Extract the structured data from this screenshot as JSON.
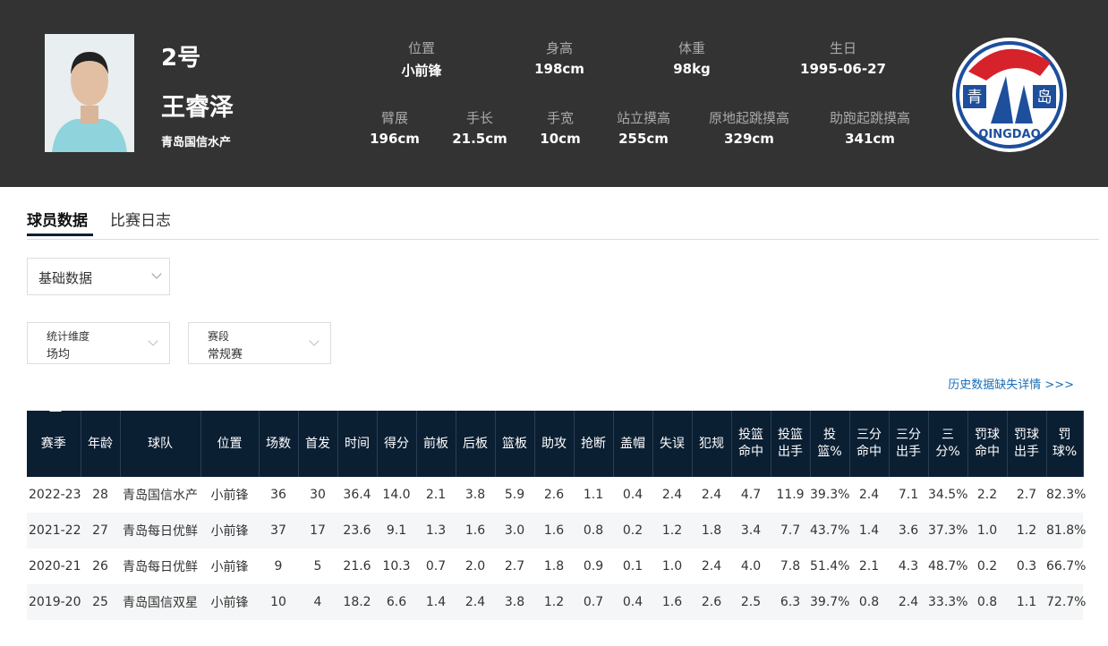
{
  "player": {
    "number": "2号",
    "name": "王睿泽",
    "team": "青岛国信水产",
    "info_row1": [
      {
        "label": "位置",
        "value": "小前锋"
      },
      {
        "label": "身高",
        "value": "198cm"
      },
      {
        "label": "体重",
        "value": "98kg"
      },
      {
        "label": "生日",
        "value": "1995-06-27"
      }
    ],
    "info_row2": [
      {
        "label": "臂展",
        "value": "196cm"
      },
      {
        "label": "手长",
        "value": "21.5cm"
      },
      {
        "label": "手宽",
        "value": "10cm"
      },
      {
        "label": "站立摸高",
        "value": "255cm"
      },
      {
        "label": "原地起跳摸高",
        "value": "329cm"
      },
      {
        "label": "助跑起跳摸高",
        "value": "341cm"
      }
    ],
    "logo": {
      "left": "青",
      "right": "岛",
      "bottom": "QINGDAO"
    }
  },
  "tabs": [
    "球员数据",
    "比赛日志"
  ],
  "data_type": "基础数据",
  "filters": [
    {
      "label": "统计维度",
      "value": "场均"
    },
    {
      "label": "赛段",
      "value": "常规赛"
    }
  ],
  "history_link": "历史数据缺失详情 >>>",
  "table": {
    "headers": [
      "赛季",
      "年龄",
      "球队",
      "位置",
      "场数",
      "首发",
      "时间",
      "得分",
      "前板",
      "后板",
      "篮板",
      "助攻",
      "抢断",
      "盖帽",
      "失误",
      "犯规",
      "投篮命中",
      "投篮出手",
      "投篮%",
      "三分命中",
      "三分出手",
      "三分%",
      "罚球命中",
      "罚球出手",
      "罚球%"
    ],
    "rows": [
      [
        "2022-23",
        "28",
        "青岛国信水产",
        "小前锋",
        "36",
        "30",
        "36.4",
        "14.0",
        "2.1",
        "3.8",
        "5.9",
        "2.6",
        "1.1",
        "0.4",
        "2.4",
        "2.4",
        "4.7",
        "11.9",
        "39.3%",
        "2.4",
        "7.1",
        "34.5%",
        "2.2",
        "2.7",
        "82.3%"
      ],
      [
        "2021-22",
        "27",
        "青岛每日优鲜",
        "小前锋",
        "37",
        "17",
        "23.6",
        "9.1",
        "1.3",
        "1.6",
        "3.0",
        "1.6",
        "0.8",
        "0.2",
        "1.2",
        "1.8",
        "3.4",
        "7.7",
        "43.7%",
        "1.4",
        "3.6",
        "37.3%",
        "1.0",
        "1.2",
        "81.8%"
      ],
      [
        "2020-21",
        "26",
        "青岛每日优鲜",
        "小前锋",
        "9",
        "5",
        "21.6",
        "10.3",
        "0.7",
        "2.0",
        "2.7",
        "1.8",
        "0.9",
        "0.1",
        "1.0",
        "2.4",
        "4.0",
        "7.8",
        "51.4%",
        "2.1",
        "4.3",
        "48.7%",
        "0.2",
        "0.3",
        "66.7%"
      ],
      [
        "2019-20",
        "25",
        "青岛国信双星",
        "小前锋",
        "10",
        "4",
        "18.2",
        "6.6",
        "1.4",
        "2.4",
        "3.8",
        "1.2",
        "0.7",
        "0.4",
        "1.6",
        "2.6",
        "2.5",
        "6.3",
        "39.7%",
        "0.8",
        "2.4",
        "33.3%",
        "0.8",
        "1.1",
        "72.7%"
      ]
    ]
  }
}
